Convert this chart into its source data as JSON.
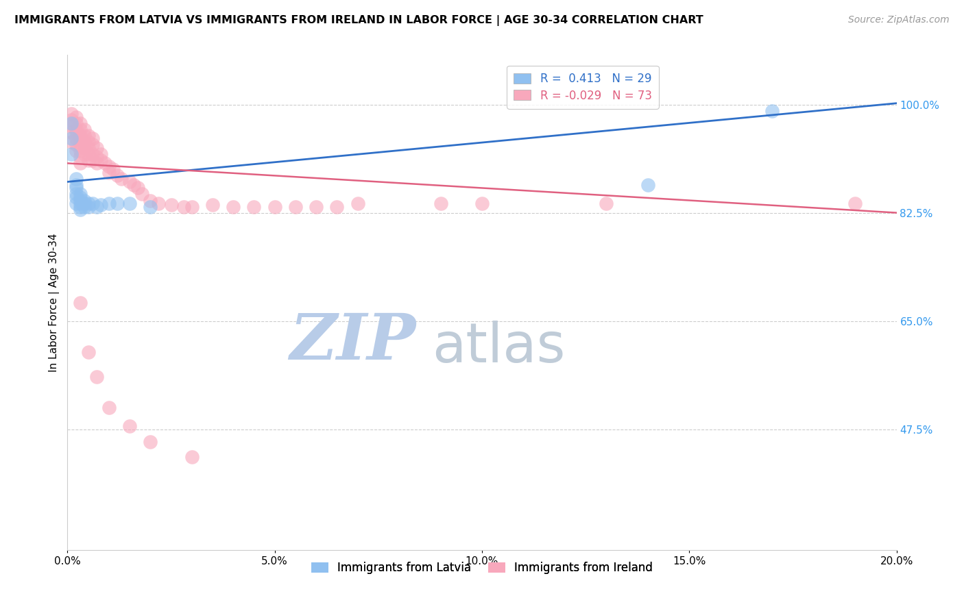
{
  "title": "IMMIGRANTS FROM LATVIA VS IMMIGRANTS FROM IRELAND IN LABOR FORCE | AGE 30-34 CORRELATION CHART",
  "source": "Source: ZipAtlas.com",
  "ylabel": "In Labor Force | Age 30-34",
  "xlim": [
    0.0,
    0.2
  ],
  "ylim": [
    0.28,
    1.08
  ],
  "yticks": [
    0.475,
    0.65,
    0.825,
    1.0
  ],
  "ytick_labels": [
    "47.5%",
    "65.0%",
    "82.5%",
    "100.0%"
  ],
  "xticks": [
    0.0,
    0.05,
    0.1,
    0.15,
    0.2
  ],
  "xtick_labels": [
    "0.0%",
    "5.0%",
    "10.0%",
    "15.0%",
    "20.0%"
  ],
  "latvia_R": 0.413,
  "latvia_N": 29,
  "ireland_R": -0.029,
  "ireland_N": 73,
  "latvia_color": "#90C0F0",
  "ireland_color": "#F8A8BC",
  "latvia_line_color": "#3070C8",
  "ireland_line_color": "#E06080",
  "watermark_zip": "ZIP",
  "watermark_atlas": "atlas",
  "watermark_color_zip": "#C0D0E8",
  "watermark_color_atlas": "#C0C8D8",
  "latvia_x": [
    0.001,
    0.001,
    0.001,
    0.002,
    0.002,
    0.002,
    0.002,
    0.002,
    0.002,
    0.003,
    0.003,
    0.003,
    0.003,
    0.003,
    0.003,
    0.004,
    0.004,
    0.004,
    0.005,
    0.005,
    0.006,
    0.007,
    0.008,
    0.01,
    0.012,
    0.015,
    0.02,
    0.14,
    0.17
  ],
  "latvia_y": [
    0.97,
    0.945,
    0.92,
    0.88,
    0.87,
    0.865,
    0.855,
    0.85,
    0.84,
    0.855,
    0.85,
    0.845,
    0.84,
    0.835,
    0.83,
    0.845,
    0.84,
    0.835,
    0.84,
    0.835,
    0.84,
    0.835,
    0.838,
    0.84,
    0.84,
    0.84,
    0.835,
    0.87,
    0.99
  ],
  "ireland_x": [
    0.001,
    0.001,
    0.001,
    0.001,
    0.001,
    0.002,
    0.002,
    0.002,
    0.002,
    0.002,
    0.002,
    0.002,
    0.003,
    0.003,
    0.003,
    0.003,
    0.003,
    0.003,
    0.003,
    0.003,
    0.004,
    0.004,
    0.004,
    0.004,
    0.004,
    0.005,
    0.005,
    0.005,
    0.005,
    0.005,
    0.006,
    0.006,
    0.006,
    0.006,
    0.007,
    0.007,
    0.007,
    0.008,
    0.008,
    0.009,
    0.01,
    0.01,
    0.011,
    0.012,
    0.013,
    0.015,
    0.016,
    0.017,
    0.018,
    0.02,
    0.022,
    0.025,
    0.028,
    0.03,
    0.035,
    0.04,
    0.045,
    0.05,
    0.055,
    0.06,
    0.065,
    0.07,
    0.09,
    0.1,
    0.13,
    0.19,
    0.003,
    0.005,
    0.007,
    0.01,
    0.015,
    0.02,
    0.03
  ],
  "ireland_y": [
    0.985,
    0.975,
    0.965,
    0.955,
    0.94,
    0.98,
    0.97,
    0.96,
    0.955,
    0.945,
    0.935,
    0.925,
    0.97,
    0.96,
    0.95,
    0.945,
    0.935,
    0.925,
    0.915,
    0.905,
    0.96,
    0.95,
    0.94,
    0.93,
    0.92,
    0.95,
    0.94,
    0.93,
    0.92,
    0.91,
    0.945,
    0.935,
    0.92,
    0.91,
    0.93,
    0.915,
    0.905,
    0.92,
    0.91,
    0.905,
    0.9,
    0.89,
    0.895,
    0.885,
    0.88,
    0.875,
    0.87,
    0.865,
    0.855,
    0.845,
    0.84,
    0.838,
    0.835,
    0.835,
    0.838,
    0.835,
    0.835,
    0.835,
    0.835,
    0.835,
    0.835,
    0.84,
    0.84,
    0.84,
    0.84,
    0.84,
    0.68,
    0.6,
    0.56,
    0.51,
    0.48,
    0.455,
    0.43
  ]
}
